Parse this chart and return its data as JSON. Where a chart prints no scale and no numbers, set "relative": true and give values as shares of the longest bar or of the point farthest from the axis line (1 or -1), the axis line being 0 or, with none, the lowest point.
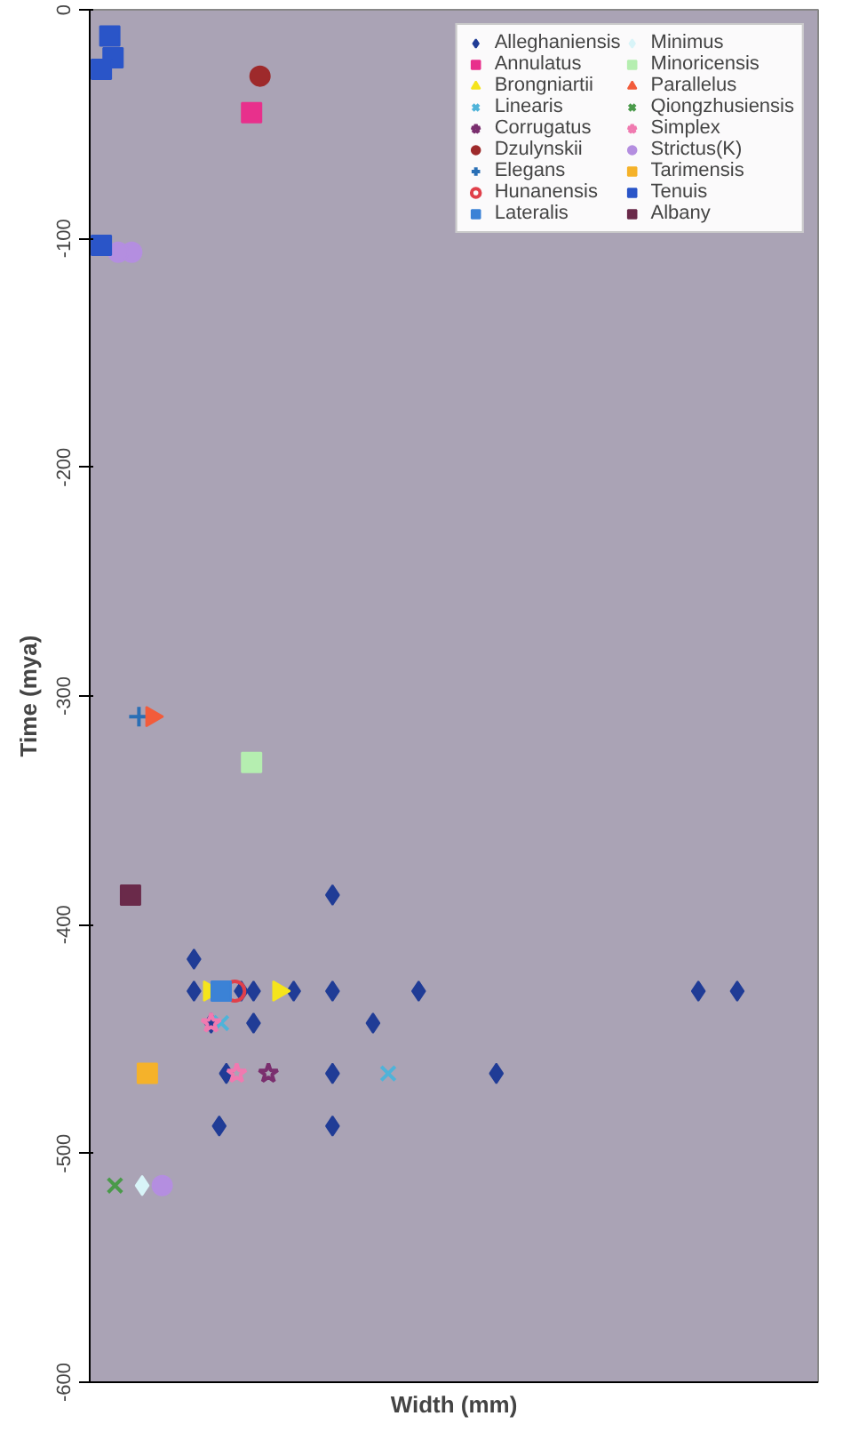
{
  "chart_data": {
    "type": "scatter",
    "orientation": "horizontal",
    "relative": true,
    "xlabel": "Width (mm)",
    "ylabel": "Time (mya)",
    "ylim": [
      -600,
      0
    ],
    "yticks": [
      -600,
      -500,
      -400,
      -300,
      -200,
      -100,
      0
    ],
    "grid": false,
    "legend": "top",
    "series": [
      {
        "name": "Alleghaniensis",
        "color": "#203c96",
        "marker": "diamond",
        "x": [
          -429,
          -429,
          -429,
          -429,
          -429,
          -429,
          -429,
          -429,
          -415,
          -387,
          -443,
          -443,
          -443,
          -465,
          -465,
          -465,
          -488,
          -488
        ],
        "values": [
          1.0,
          0.94,
          0.508,
          0.375,
          0.315,
          0.253,
          0.234,
          0.161,
          0.161,
          0.375,
          0.4375,
          0.253,
          0.1875,
          0.628,
          0.375,
          0.211,
          0.375,
          0.2
        ]
      },
      {
        "name": "Annulatus",
        "color": "#e8308c",
        "marker": "square",
        "x": [
          -45
        ],
        "values": [
          0.25
        ]
      },
      {
        "name": "Brongniartii",
        "color": "#f5e41c",
        "marker": "triangle",
        "x": [
          -429,
          -429
        ],
        "values": [
          0.292,
          0.185
        ]
      },
      {
        "name": "Linearis",
        "color": "#4fb3d9",
        "marker": "x",
        "x": [
          -465,
          -443
        ],
        "values": [
          0.461,
          0.203
        ]
      },
      {
        "name": "Corrugatus",
        "color": "#7a2e6e",
        "marker": "star",
        "x": [
          -465
        ],
        "values": [
          0.276
        ]
      },
      {
        "name": "Dzulynskii",
        "color": "#9e2a2b",
        "marker": "circle",
        "x": [
          -29
        ],
        "values": [
          0.263
        ]
      },
      {
        "name": "Elegans",
        "color": "#2a6fb5",
        "marker": "cross",
        "x": [
          -309
        ],
        "values": [
          0.076
        ]
      },
      {
        "name": "Hunanensis",
        "color": "#e0404a",
        "marker": "circle_open",
        "x": [
          -429
        ],
        "values": [
          0.224
        ]
      },
      {
        "name": "Lateralis",
        "color": "#3b82d6",
        "marker": "square",
        "x": [
          -429
        ],
        "values": [
          0.203
        ]
      },
      {
        "name": "Minimus",
        "color": "#d8f4f8",
        "marker": "diamond",
        "x": [
          -514
        ],
        "values": [
          0.081
        ]
      },
      {
        "name": "Minoricensis",
        "color": "#b5eeb0",
        "marker": "square",
        "x": [
          -329
        ],
        "values": [
          0.25
        ]
      },
      {
        "name": "Parallelus",
        "color": "#f25c3b",
        "marker": "triangle",
        "x": [
          -309
        ],
        "values": [
          0.096
        ]
      },
      {
        "name": "Qiongzhusiensis",
        "color": "#4a9a4a",
        "marker": "x",
        "x": [
          -514
        ],
        "values": [
          0.039
        ]
      },
      {
        "name": "Simplex",
        "color": "#f07ab0",
        "marker": "star",
        "x": [
          -465,
          -443
        ],
        "values": [
          0.227,
          0.1875
        ]
      },
      {
        "name": "Strictus(K)",
        "color": "#b48ee0",
        "marker": "circle",
        "x": [
          -106,
          -106,
          -514
        ],
        "values": [
          0.065,
          0.044,
          0.112
        ]
      },
      {
        "name": "Tarimensis",
        "color": "#f5b22a",
        "marker": "square",
        "x": [
          -465
        ],
        "values": [
          0.089
        ]
      },
      {
        "name": "Tenuis",
        "color": "#2a55c8",
        "marker": "square",
        "x": [
          -11.5,
          -21,
          -26,
          -103
        ],
        "values": [
          0.031,
          0.036,
          0.018,
          0.018
        ]
      },
      {
        "name": "Albany",
        "color": "#6a2a4a",
        "marker": "square",
        "x": [
          -387
        ],
        "values": [
          0.063
        ]
      }
    ]
  }
}
